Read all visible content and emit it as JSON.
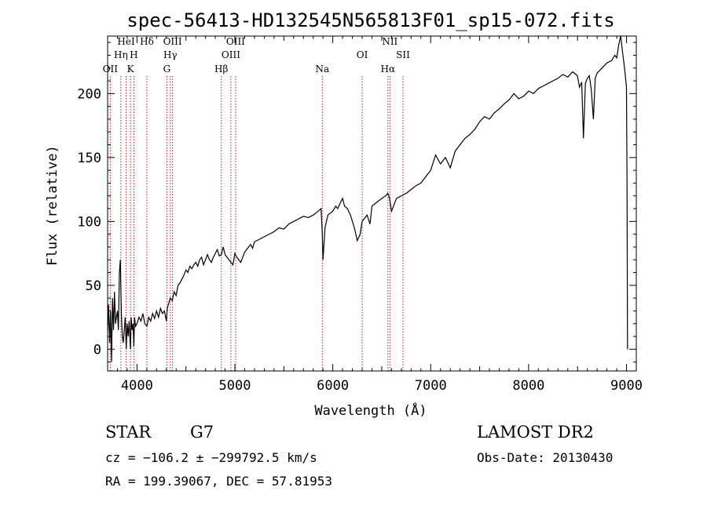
{
  "chart_data": {
    "type": "line",
    "title": "spec-56413-HD132545N565813F01_sp15-072.fits",
    "xlabel": "Wavelength (Å)",
    "ylabel": "Flux (relative)",
    "xlim": [
      3700,
      9100
    ],
    "ylim": [
      -17,
      245
    ],
    "x_ticks": [
      4000,
      5000,
      6000,
      7000,
      8000,
      9000
    ],
    "y_ticks": [
      0,
      50,
      100,
      150,
      200
    ],
    "grid": false,
    "series": [
      {
        "x": [
          3700,
          3710,
          3720,
          3730,
          3740,
          3750,
          3760,
          3770,
          3780,
          3790,
          3800,
          3810,
          3820,
          3830,
          3840,
          3850,
          3860,
          3870,
          3880,
          3890,
          3900,
          3910,
          3920,
          3930,
          3934,
          3940,
          3950,
          3960,
          3968,
          3975,
          3985,
          4000,
          4020,
          4040,
          4060,
          4080,
          4101,
          4120,
          4140,
          4160,
          4180,
          4200,
          4220,
          4240,
          4260,
          4280,
          4300,
          4310,
          4320,
          4340,
          4360,
          4380,
          4400,
          4420,
          4440,
          4460,
          4480,
          4500,
          4520,
          4540,
          4560,
          4580,
          4600,
          4620,
          4640,
          4660,
          4680,
          4700,
          4720,
          4740,
          4760,
          4780,
          4800,
          4820,
          4840,
          4861,
          4880,
          4900,
          4920,
          4940,
          4960,
          4980,
          5000,
          5020,
          5040,
          5060,
          5080,
          5100,
          5120,
          5140,
          5160,
          5180,
          5200,
          5250,
          5300,
          5350,
          5400,
          5450,
          5500,
          5550,
          5600,
          5650,
          5700,
          5750,
          5800,
          5850,
          5880,
          5893,
          5900,
          5920,
          5950,
          6000,
          6030,
          6050,
          6080,
          6100,
          6120,
          6150,
          6180,
          6200,
          6220,
          6250,
          6280,
          6300,
          6350,
          6380,
          6400,
          6450,
          6500,
          6540,
          6563,
          6580,
          6600,
          6650,
          6700,
          6750,
          6800,
          6850,
          6900,
          6950,
          7000,
          7050,
          7100,
          7150,
          7200,
          7250,
          7300,
          7350,
          7400,
          7450,
          7500,
          7550,
          7600,
          7650,
          7700,
          7750,
          7800,
          7850,
          7900,
          7950,
          8000,
          8050,
          8100,
          8150,
          8200,
          8250,
          8300,
          8350,
          8400,
          8450,
          8498,
          8520,
          8542,
          8560,
          8580,
          8600,
          8620,
          8640,
          8662,
          8680,
          8700,
          8750,
          8800,
          8850,
          8880,
          8900,
          8920,
          8940,
          8960,
          8980,
          9000,
          9005,
          9010
        ],
        "y": [
          15,
          35,
          5,
          30,
          -10,
          40,
          15,
          45,
          20,
          25,
          30,
          15,
          60,
          70,
          30,
          10,
          5,
          15,
          25,
          0,
          20,
          10,
          22,
          5,
          0,
          25,
          15,
          20,
          2,
          25,
          18,
          20,
          25,
          22,
          28,
          20,
          18,
          25,
          22,
          28,
          24,
          30,
          25,
          32,
          28,
          30,
          22,
          32,
          35,
          40,
          38,
          45,
          42,
          50,
          52,
          55,
          58,
          62,
          60,
          65,
          63,
          66,
          68,
          65,
          70,
          72,
          66,
          70,
          74,
          70,
          68,
          72,
          75,
          78,
          73,
          74,
          80,
          74,
          72,
          70,
          68,
          66,
          75,
          72,
          70,
          68,
          72,
          76,
          78,
          80,
          82,
          79,
          84,
          86,
          88,
          90,
          92,
          95,
          94,
          98,
          100,
          102,
          104,
          103,
          105,
          108,
          110,
          90,
          70,
          95,
          105,
          108,
          112,
          110,
          115,
          118,
          112,
          110,
          105,
          100,
          95,
          85,
          90,
          100,
          105,
          98,
          112,
          115,
          118,
          120,
          122,
          118,
          108,
          118,
          120,
          122,
          125,
          128,
          130,
          135,
          140,
          152,
          145,
          150,
          142,
          155,
          160,
          165,
          168,
          172,
          178,
          182,
          180,
          185,
          188,
          192,
          195,
          200,
          196,
          198,
          202,
          200,
          204,
          206,
          208,
          210,
          212,
          215,
          213,
          217,
          214,
          205,
          209,
          165,
          208,
          212,
          214,
          203,
          180,
          212,
          216,
          220,
          224,
          226,
          230,
          228,
          238,
          245,
          232,
          220,
          205,
          130,
          0
        ]
      }
    ],
    "spectral_lines": [
      {
        "name": "OII",
        "wavelength": 3727
      },
      {
        "name": "Hη",
        "wavelength": 3835
      },
      {
        "name": "HeI",
        "wavelength": 3889
      },
      {
        "name": "K",
        "wavelength": 3934
      },
      {
        "name": "H",
        "wavelength": 3968
      },
      {
        "name": "Hδ",
        "wavelength": 4101
      },
      {
        "name": "G",
        "wavelength": 4305
      },
      {
        "name": "Hγ",
        "wavelength": 4340
      },
      {
        "name": "OIII",
        "wavelength": 4363
      },
      {
        "name": "Hβ",
        "wavelength": 4861
      },
      {
        "name": "OIII",
        "wavelength": 4959
      },
      {
        "name": "OIII",
        "wavelength": 5007
      },
      {
        "name": "Na",
        "wavelength": 5893
      },
      {
        "name": "OI",
        "wavelength": 6300
      },
      {
        "name": "Hα",
        "wavelength": 6563
      },
      {
        "name": "NII",
        "wavelength": 6583
      },
      {
        "name": "SII",
        "wavelength": 6717
      }
    ]
  },
  "info": {
    "class": "STAR",
    "subclass": "G7",
    "survey": "LAMOST DR2",
    "cz": "cz = −106.2 ± −299792.5 km/s",
    "obs_date": "Obs-Date: 20130430",
    "radec": "RA = 199.39067, DEC =  57.81953"
  },
  "colors": {
    "spectrum": "#000000",
    "line_markers": "#b22222"
  }
}
